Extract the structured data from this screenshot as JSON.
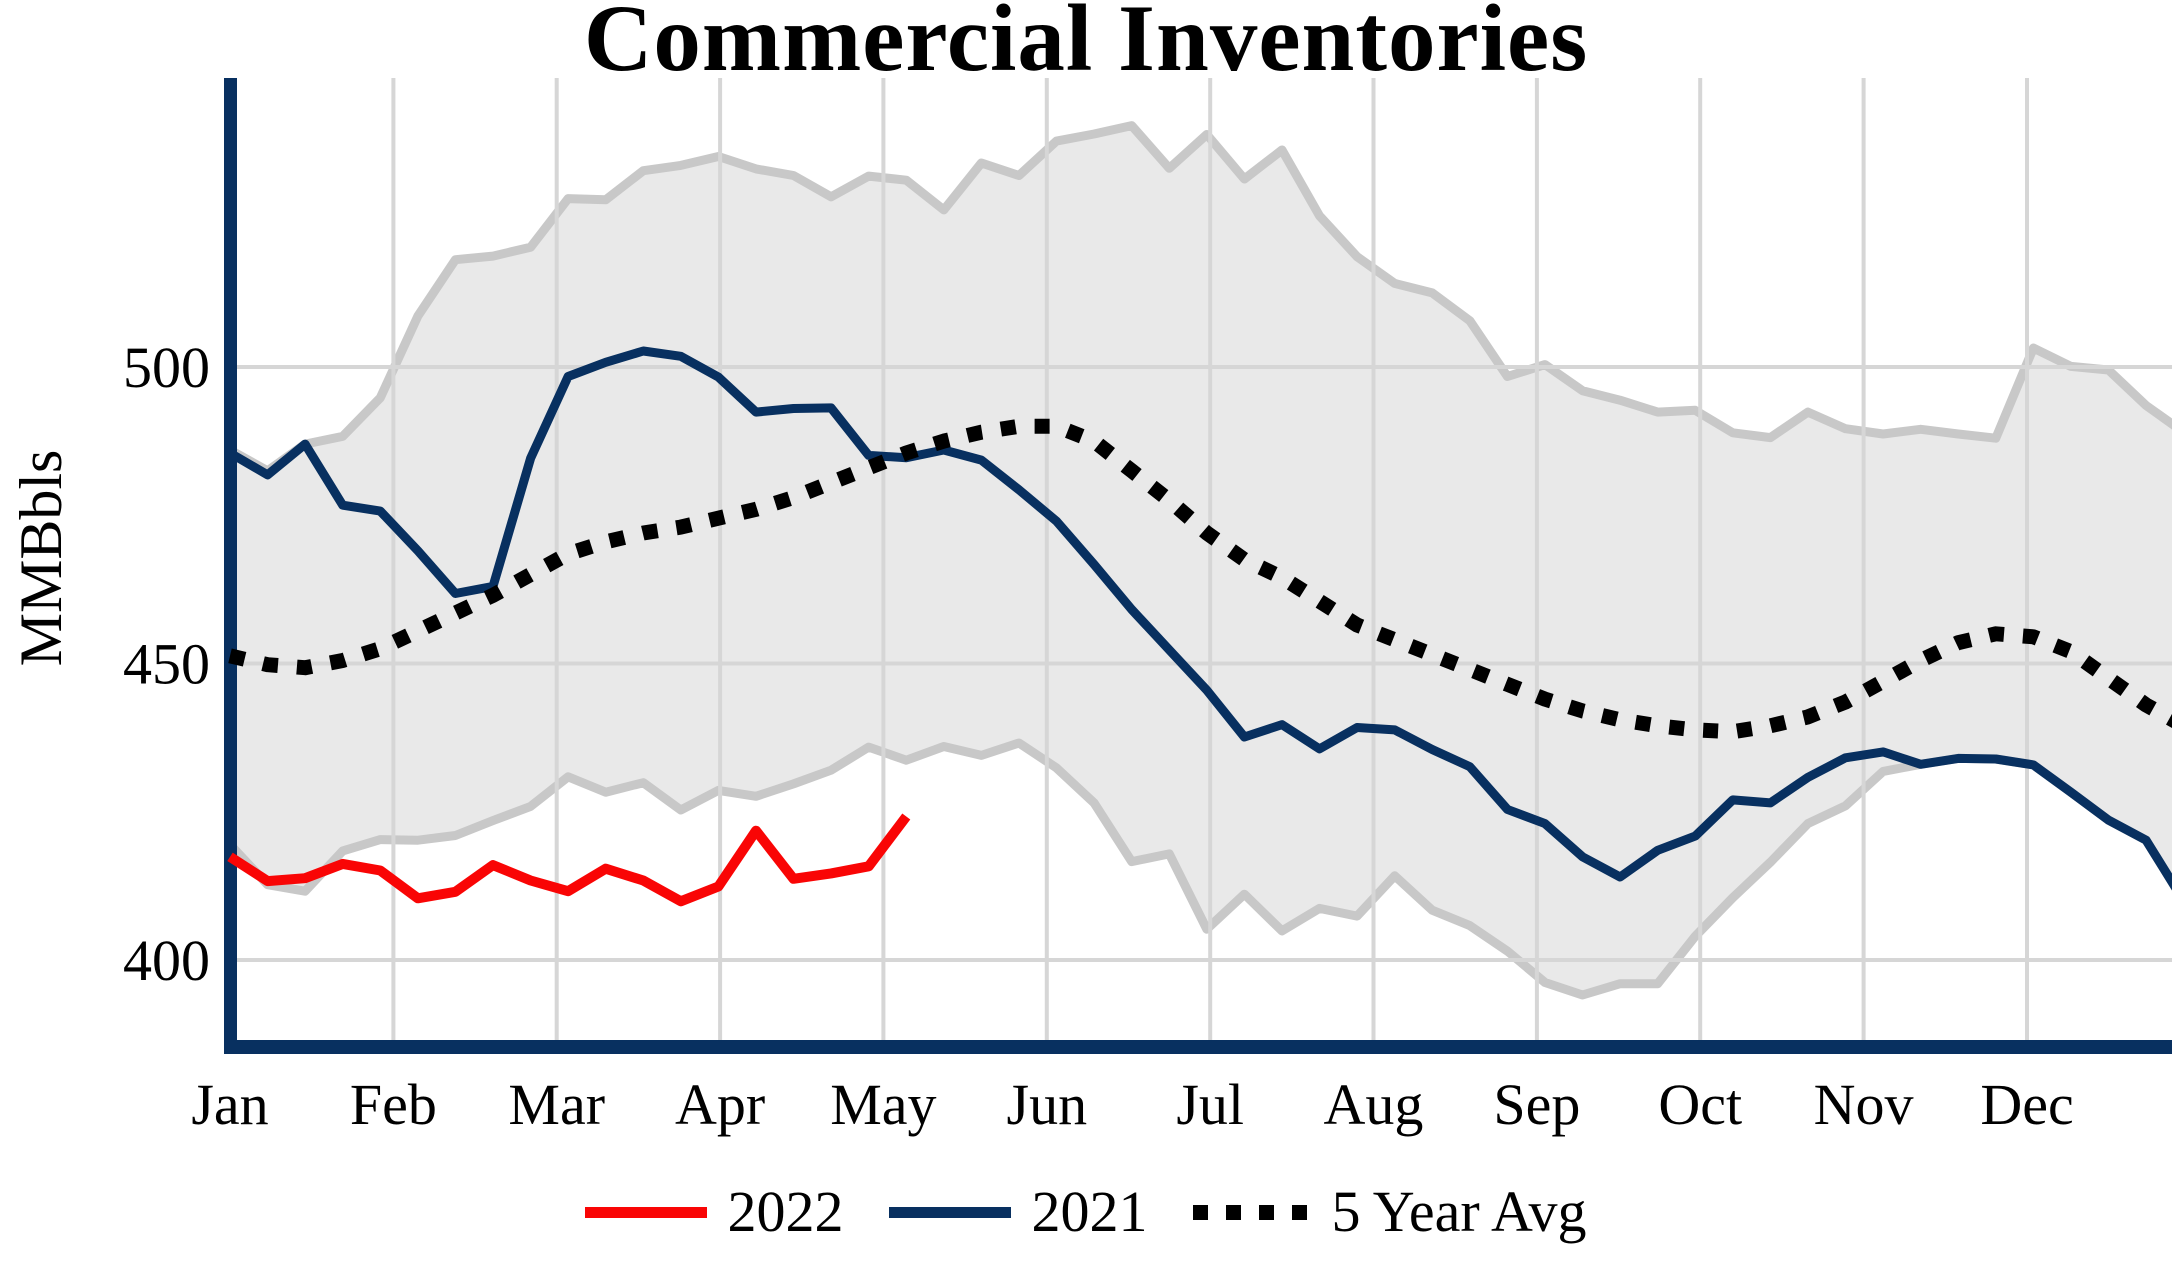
{
  "chart_data": {
    "type": "line",
    "title": "Commercial Inventories",
    "ylabel": "MMBbls",
    "x_tick_labels": [
      "Jan",
      "Feb",
      "Mar",
      "Apr",
      "May",
      "Jun",
      "Jul",
      "Aug",
      "Sep",
      "Oct",
      "Nov",
      "Dec"
    ],
    "y_ticks": [
      400,
      450,
      500
    ],
    "ylim": [
      386,
      549
    ],
    "x_resolution": "weekly, 53 points spanning Jan 1 to Dec 31 (2022 series has 19 points, Jan to early May)",
    "grid": true,
    "legend_position": "bottom",
    "background": "#ffffff",
    "grid_color": "#d6d6d6",
    "axis_color": "#083060",
    "series": [
      {
        "name": "2022",
        "color": "#f90505",
        "style": "solid",
        "values": [
          417.4,
          413.3,
          413.8,
          416.2,
          415.1,
          410.4,
          411.5,
          416.0,
          413.4,
          411.6,
          415.4,
          413.4,
          409.9,
          412.4,
          421.8,
          413.7,
          414.6,
          415.8,
          424.2
        ]
      },
      {
        "name": "2021",
        "color": "#083060",
        "style": "solid",
        "values": [
          485.5,
          481.8,
          487.0,
          476.7,
          475.7,
          469.0,
          461.8,
          463.0,
          484.6,
          498.4,
          500.8,
          502.7,
          501.8,
          498.3,
          492.4,
          493.0,
          493.1,
          485.1,
          484.7,
          486.0,
          484.3,
          479.3,
          474.0,
          466.7,
          459.1,
          452.3,
          445.5,
          437.6,
          439.7,
          435.6,
          439.2,
          438.8,
          435.5,
          432.6,
          425.4,
          423.0,
          417.4,
          414.0,
          418.5,
          420.9,
          427.0,
          426.5,
          430.8,
          434.1,
          435.1,
          433.0,
          434.0,
          433.9,
          432.9,
          428.3,
          423.6,
          420.2,
          410.0
        ]
      },
      {
        "name": "5 Year Avg",
        "color": "#000000",
        "style": "dotted",
        "values": [
          451.3,
          449.8,
          449.3,
          450.5,
          452.5,
          455.5,
          458.5,
          461.5,
          465.0,
          468.5,
          470.5,
          472.0,
          473.0,
          474.5,
          476.0,
          478.0,
          480.5,
          483.0,
          485.5,
          487.5,
          489.0,
          490.0,
          490.0,
          487.5,
          482.5,
          477.5,
          472.0,
          467.5,
          464.5,
          460.5,
          456.5,
          454.0,
          451.5,
          449.0,
          446.5,
          444.0,
          442.0,
          440.5,
          439.5,
          438.8,
          438.5,
          439.5,
          441.0,
          443.5,
          447.0,
          450.5,
          453.5,
          455.0,
          454.5,
          452.0,
          447.5,
          443.0,
          439.5
        ]
      }
    ],
    "band": {
      "name": "5-year min-max range",
      "fill": "#e9e9e9",
      "stroke": "#c8c8c8",
      "top": [
        486.0,
        482.5,
        487.0,
        488.3,
        494.8,
        508.6,
        518.1,
        518.7,
        520.2,
        528.4,
        528.2,
        533.1,
        534.0,
        535.5,
        533.4,
        532.3,
        528.7,
        532.2,
        531.5,
        526.5,
        534.4,
        532.3,
        538.1,
        539.3,
        540.7,
        533.5,
        539.2,
        531.7,
        536.6,
        525.5,
        518.6,
        514.1,
        512.5,
        507.8,
        498.4,
        500.4,
        496.0,
        494.4,
        492.4,
        492.7,
        488.9,
        488.1,
        492.4,
        489.6,
        488.7,
        489.5,
        488.7,
        488.0,
        503.2,
        500.1,
        499.5,
        493.5,
        489.0
      ],
      "bottom": [
        419.5,
        412.7,
        411.6,
        418.4,
        420.3,
        420.2,
        421.0,
        423.5,
        425.9,
        430.9,
        428.3,
        429.9,
        425.3,
        428.6,
        427.6,
        429.7,
        432.0,
        435.9,
        433.7,
        436.0,
        434.5,
        436.6,
        432.4,
        426.5,
        416.6,
        417.9,
        405.2,
        411.1,
        404.9,
        408.7,
        407.4,
        414.2,
        408.4,
        405.8,
        401.5,
        396.2,
        394.1,
        396.0,
        396.0,
        404.0,
        410.5,
        416.5,
        423.0,
        426.0,
        431.8,
        433.0,
        434.0,
        433.9,
        432.9,
        428.3,
        423.6,
        420.2,
        410.0
      ]
    }
  },
  "legend": {
    "items": [
      {
        "label": "2022",
        "color": "#f90505",
        "style": "solid"
      },
      {
        "label": "2021",
        "color": "#083060",
        "style": "solid"
      },
      {
        "label": "5 Year Avg",
        "color": "#000000",
        "style": "dotted"
      }
    ]
  }
}
